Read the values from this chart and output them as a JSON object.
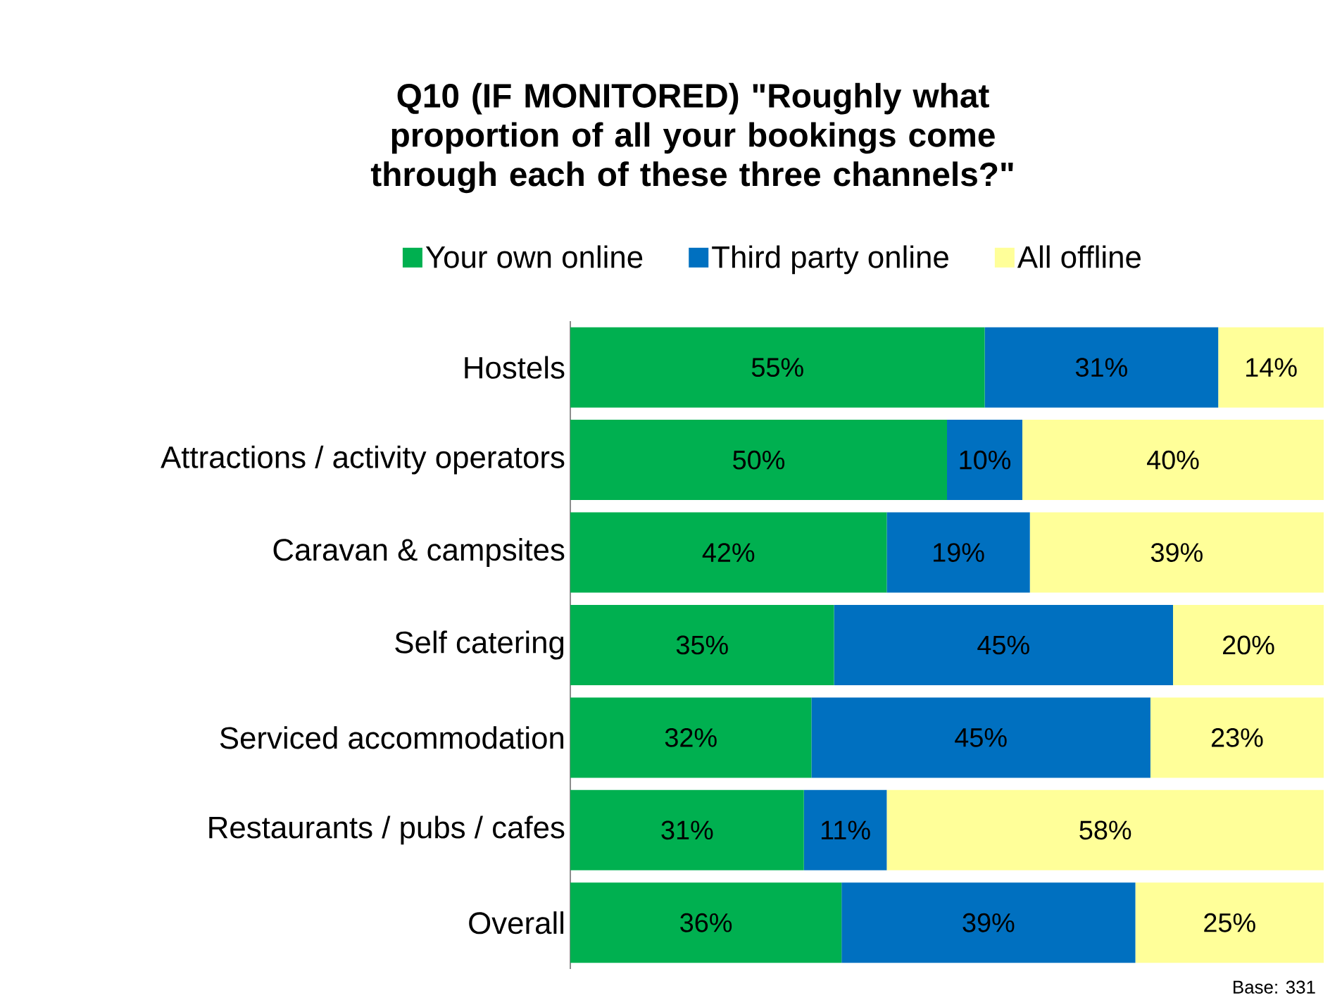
{
  "chart_data": {
    "type": "bar",
    "orientation": "horizontal",
    "stacked": true,
    "title": "Q10 (IF MONITORED) \"Roughly what proportion of all your bookings come through each of these three channels?\"",
    "categories": [
      "Hostels",
      "Attractions / activity operators",
      "Caravan & campsites",
      "Self catering",
      "Serviced accommodation",
      "Restaurants / pubs / cafes",
      "Overall"
    ],
    "series": [
      {
        "name": "Your own online",
        "color": "#00b050",
        "values": [
          55,
          50,
          42,
          35,
          32,
          31,
          36
        ],
        "value_labels": [
          "55%",
          "50%",
          "42%",
          "35%",
          "32%",
          "31%",
          "36%"
        ]
      },
      {
        "name": "Third party online",
        "color": "#0070c0",
        "values": [
          31,
          10,
          19,
          45,
          45,
          11,
          39
        ],
        "value_labels": [
          "31%",
          "10%",
          "19%",
          "45%",
          "45%",
          "11%",
          "39%"
        ]
      },
      {
        "name": "All offline",
        "color": "#ffff99",
        "values": [
          14,
          40,
          39,
          20,
          23,
          58,
          25
        ],
        "value_labels": [
          "14%",
          "40%",
          "39%",
          "20%",
          "23%",
          "58%",
          "25%"
        ]
      }
    ],
    "legend": "top",
    "annotations": [
      "Base: 331"
    ]
  }
}
